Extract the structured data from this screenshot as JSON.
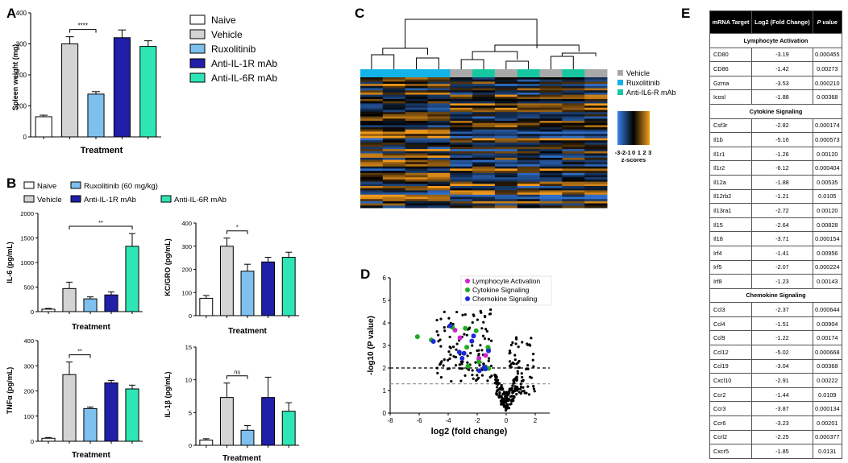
{
  "panel_labels": {
    "A": "A",
    "B": "B",
    "C": "C",
    "D": "D",
    "E": "E"
  },
  "colors": {
    "Naive": "#ffffff",
    "Vehicle": "#d3d3d3",
    "Ruxolitinib": "#7ec0ee",
    "Anti-IL-1R mAb": "#1f1fa8",
    "Anti-IL-6R mAb": "#2ee6b5",
    "heat_low": "#2f6ec8",
    "heat_high": "#f49a1c",
    "lymph": "#d020d0",
    "cyto": "#22aa22",
    "chemo": "#1c2ad8"
  },
  "legendA": [
    "Naive",
    "Vehicle",
    "Ruxolitinib",
    "Anti-IL-1R mAb",
    "Anti-IL-6R mAb"
  ],
  "legendB": [
    "Naive",
    "Vehicle",
    "Ruxolitinib (60 mg/kg)",
    "Anti-IL-1R mAb",
    "Anti-IL-6R mAb"
  ],
  "chart_data": [
    {
      "id": "A",
      "type": "bar",
      "title": "",
      "xlabel": "Treatment",
      "ylabel": "Spleen weight (mg)",
      "ylim": [
        0,
        400
      ],
      "yticks": [
        0,
        100,
        200,
        300,
        400
      ],
      "categories": [
        "Naive",
        "Vehicle",
        "Ruxolitinib",
        "Anti-IL-1R mAb",
        "Anti-IL-6R mAb"
      ],
      "values": [
        65,
        300,
        138,
        320,
        292
      ],
      "errors": [
        5,
        23,
        8,
        25,
        18
      ],
      "sig": {
        "from": 1,
        "to": 2,
        "label": "****"
      }
    },
    {
      "id": "B1",
      "type": "bar",
      "xlabel": "Treatment",
      "ylabel": "IL-6 (pg/mL)",
      "ylim": [
        0,
        2000
      ],
      "yticks": [
        0,
        500,
        1000,
        1500,
        2000
      ],
      "categories": [
        "Naive",
        "Vehicle",
        "Ruxolitinib (60 mg/kg)",
        "Anti-IL-1R mAb",
        "Anti-IL-6R mAb"
      ],
      "values": [
        50,
        470,
        260,
        340,
        1330
      ],
      "errors": [
        15,
        130,
        40,
        60,
        260
      ],
      "sig": {
        "from": 1,
        "to": 4,
        "label": "**"
      }
    },
    {
      "id": "B2",
      "type": "bar",
      "xlabel": "Treatment",
      "ylabel": "KC/GRO (pg/mL)",
      "ylim": [
        0,
        400
      ],
      "yticks": [
        0,
        100,
        200,
        300,
        400
      ],
      "categories": [
        "Naive",
        "Vehicle",
        "Ruxolitinib (60 mg/kg)",
        "Anti-IL-1R mAb",
        "Anti-IL-6R mAb"
      ],
      "values": [
        75,
        300,
        192,
        232,
        252
      ],
      "errors": [
        12,
        35,
        30,
        20,
        22
      ],
      "sig": {
        "from": 1,
        "to": 2,
        "label": "*"
      }
    },
    {
      "id": "B3",
      "type": "bar",
      "xlabel": "Treatment",
      "ylabel": "TNFα (pg/mL)",
      "ylim": [
        0,
        400
      ],
      "yticks": [
        0,
        100,
        200,
        300,
        400
      ],
      "categories": [
        "Naive",
        "Vehicle",
        "Ruxolitinib (60 mg/kg)",
        "Anti-IL-1R mAb",
        "Anti-IL-6R mAb"
      ],
      "values": [
        12,
        265,
        130,
        232,
        208
      ],
      "errors": [
        3,
        50,
        6,
        10,
        15
      ],
      "sig": {
        "from": 1,
        "to": 2,
        "label": "**"
      }
    },
    {
      "id": "B4",
      "type": "bar",
      "xlabel": "Treatment",
      "ylabel": "IL-1β (pg/mL)",
      "ylim": [
        0,
        15
      ],
      "yticks": [
        0,
        5,
        10,
        15
      ],
      "categories": [
        "Naive",
        "Vehicle",
        "Ruxolitinib (60 mg/kg)",
        "Anti-IL-1R mAb",
        "Anti-IL-6R mAb"
      ],
      "values": [
        0.8,
        7.3,
        2.3,
        7.3,
        5.2
      ],
      "errors": [
        0.2,
        2.2,
        0.7,
        3.1,
        1.3
      ],
      "sig": {
        "from": 1,
        "to": 2,
        "label": "ns"
      }
    },
    {
      "id": "C",
      "type": "heatmap",
      "legend": [
        "Vehicle",
        "Ruxolitinib",
        "Anti-IL6-R mAb"
      ],
      "colorbar_ticks": [
        "-3",
        "-2",
        "-1",
        "0",
        "1",
        "2",
        "3"
      ],
      "colorbar_label": "z-scores",
      "column_groups": [
        "Ruxolitinib",
        "Ruxolitinib",
        "Ruxolitinib",
        "Ruxolitinib",
        "Vehicle",
        "Anti-IL6-R mAb",
        "Vehicle",
        "Anti-IL6-R mAb",
        "Vehicle",
        "Anti-IL6-R mAb",
        "Vehicle"
      ]
    },
    {
      "id": "D",
      "type": "scatter",
      "xlabel": "log2 (fold change)",
      "ylabel": "-log10 (P value)",
      "xlim": [
        -8,
        3
      ],
      "ylim": [
        0,
        6
      ],
      "xticks": [
        -8,
        -6,
        -4,
        -2,
        0,
        2
      ],
      "yticks": [
        0,
        1,
        2,
        3,
        4,
        5,
        6
      ],
      "thresholds": [
        2.0,
        1.3
      ],
      "legend": [
        "Lymphocyte Activation",
        "Cytokine Signaling",
        "Chemokine Signaling"
      ],
      "lymph_points": [
        [
          -3.19,
          3.34
        ],
        [
          -1.42,
          2.56
        ],
        [
          -3.53,
          3.68
        ],
        [
          -1.88,
          2.43
        ]
      ],
      "cyto_points": [
        [
          -2.82,
          3.76
        ],
        [
          -5.16,
          3.24
        ],
        [
          -1.26,
          2.92
        ],
        [
          -6.12,
          3.39
        ],
        [
          -1.88,
          2.27
        ],
        [
          -1.21,
          1.98
        ],
        [
          -2.72,
          2.92
        ],
        [
          -2.64,
          2.08
        ],
        [
          -3.71,
          3.81
        ],
        [
          -1.41,
          2.02
        ],
        [
          -2.07,
          3.65
        ],
        [
          -1.23,
          2.85
        ]
      ],
      "chemo_points": [
        [
          -2.37,
          3.19
        ],
        [
          -1.51,
          2.04
        ],
        [
          -1.22,
          2.76
        ],
        [
          -5.02,
          3.18
        ],
        [
          -3.04,
          2.43
        ],
        [
          -2.91,
          2.65
        ],
        [
          -1.44,
          1.96
        ],
        [
          -3.87,
          3.87
        ],
        [
          -3.23,
          2.7
        ],
        [
          -2.25,
          3.42
        ],
        [
          -1.85,
          1.88
        ]
      ]
    }
  ],
  "tableE": {
    "headers": [
      "mRNA Target",
      "Log2 (Fold Change)",
      "P value"
    ],
    "groups": [
      {
        "name": "Lymphocyte Activation",
        "rows": [
          [
            "CD80",
            "-3.19",
            "0.000455"
          ],
          [
            "CD86",
            "-1.42",
            "0.00273"
          ],
          [
            "Gzma",
            "-3.53",
            "0.000210"
          ],
          [
            "Icosl",
            "-1.88",
            "0.00368"
          ]
        ]
      },
      {
        "name": "Cytokine Signaling",
        "rows": [
          [
            "Csf3r",
            "-2.82",
            "0.000174"
          ],
          [
            "Il1b",
            "-5.16",
            "0.000573"
          ],
          [
            "Il1r1",
            "-1.26",
            "0.00120"
          ],
          [
            "Il1r2",
            "-6.12",
            "0.000404"
          ],
          [
            "Il12a",
            "-1.88",
            "0.00535"
          ],
          [
            "Il12rb2",
            "-1.21",
            "0.0105"
          ],
          [
            "Il13ra1",
            "-2.72",
            "0.00120"
          ],
          [
            "Il15",
            "-2.64",
            "0.00828"
          ],
          [
            "Il18",
            "-3.71",
            "0.000154"
          ],
          [
            "Irf4",
            "-1.41",
            "0.00956"
          ],
          [
            "Irf5",
            "-2.07",
            "0.000224"
          ],
          [
            "Irf8",
            "-1.23",
            "0.00143"
          ]
        ]
      },
      {
        "name": "Chemokine Signaling",
        "rows": [
          [
            "Ccl3",
            "-2.37",
            "0.000644"
          ],
          [
            "Ccl4",
            "-1.51",
            "0.00904"
          ],
          [
            "Ccl9",
            "-1.22",
            "0.00174"
          ],
          [
            "Ccl12",
            "-5.02",
            "0.000668"
          ],
          [
            "Ccl19",
            "-3.04",
            "0.00368"
          ],
          [
            "Cxcl10",
            "-2.91",
            "0.00222"
          ],
          [
            "Ccr2",
            "-1.44",
            "0.0109"
          ],
          [
            "Ccr3",
            "-3.87",
            "0.000134"
          ],
          [
            "Ccr6",
            "-3.23",
            "0.00201"
          ],
          [
            "Ccrl2",
            "-2.25",
            "0.000377"
          ],
          [
            "Cxcr5",
            "-1.85",
            "0.0131"
          ]
        ]
      }
    ]
  }
}
